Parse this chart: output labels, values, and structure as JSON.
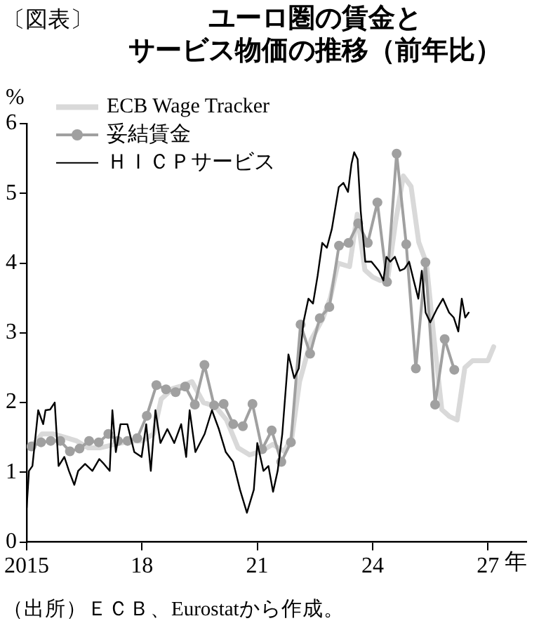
{
  "chart_data": {
    "type": "line",
    "title": "ユーロ圏の賃金とサービス物価の推移（前年比）",
    "ylabel": "%",
    "xlabel": "年",
    "annotations": [
      "〔図表〕",
      "（出所）ＥＣＢ、Eurostatから作成。"
    ],
    "xlim": [
      2015,
      2028
    ],
    "xticks": [
      2015,
      {
        "value": 2018,
        "label": "18"
      },
      {
        "value": 2021,
        "label": "21"
      },
      {
        "value": 2024,
        "label": "24"
      },
      {
        "value": 2027,
        "label": "27"
      }
    ],
    "ylim": [
      0,
      6
    ],
    "yticks": [
      0,
      1,
      2,
      3,
      4,
      5,
      6
    ],
    "grid": false,
    "legend": "top left",
    "series": [
      {
        "name": "ECB Wage Tracker",
        "color": "#d9d9d9",
        "marker": "none",
        "x": [
          2015.1,
          2015.4,
          2015.7,
          2016.0,
          2016.3,
          2016.6,
          2016.9,
          2017.3,
          2017.7,
          2018.0,
          2018.3,
          2018.5,
          2018.8,
          2019.1,
          2019.3,
          2019.6,
          2019.9,
          2020.2,
          2020.5,
          2020.8,
          2021.1,
          2021.4,
          2021.7,
          2021.9,
          2022.1,
          2022.4,
          2022.7,
          2022.9,
          2023.1,
          2023.4,
          2023.6,
          2023.8,
          2024.0,
          2024.2,
          2024.4,
          2024.6,
          2024.8,
          2025.0,
          2025.2,
          2025.4,
          2025.6,
          2025.8,
          2026.0,
          2026.2,
          2026.4,
          2026.6,
          2026.8,
          2027.0,
          2027.15
        ],
        "values": [
          1.35,
          1.55,
          1.55,
          1.5,
          1.45,
          1.35,
          1.35,
          1.4,
          1.45,
          1.45,
          1.55,
          2.05,
          2.2,
          2.25,
          2.3,
          2.0,
          1.95,
          1.75,
          1.35,
          1.25,
          1.3,
          1.4,
          1.3,
          1.5,
          2.3,
          2.9,
          3.2,
          3.5,
          4.0,
          3.95,
          4.7,
          3.9,
          3.8,
          3.75,
          3.8,
          4.6,
          5.25,
          5.1,
          4.3,
          4.0,
          2.9,
          1.9,
          1.8,
          1.75,
          2.5,
          2.6,
          2.6,
          2.6,
          2.8
        ]
      },
      {
        "name": "妥結賃金",
        "color": "#a0a0a0",
        "marker": "circle",
        "x": [
          2015.125,
          2015.375,
          2015.625,
          2015.875,
          2016.125,
          2016.375,
          2016.625,
          2016.875,
          2017.125,
          2017.375,
          2017.625,
          2017.875,
          2018.125,
          2018.375,
          2018.625,
          2018.875,
          2019.125,
          2019.375,
          2019.625,
          2019.875,
          2020.125,
          2020.375,
          2020.625,
          2020.875,
          2021.125,
          2021.375,
          2021.625,
          2021.875,
          2022.125,
          2022.375,
          2022.625,
          2022.875,
          2023.125,
          2023.375,
          2023.625,
          2023.875,
          2024.125,
          2024.375,
          2024.625,
          2024.875,
          2025.125,
          2025.375,
          2025.625,
          2025.875,
          2026.125
        ],
        "values": [
          1.37,
          1.43,
          1.45,
          1.45,
          1.3,
          1.34,
          1.45,
          1.43,
          1.55,
          1.45,
          1.45,
          1.49,
          1.81,
          2.25,
          2.19,
          2.15,
          2.23,
          1.97,
          2.54,
          1.96,
          1.98,
          1.69,
          1.66,
          1.98,
          1.33,
          1.6,
          1.15,
          1.43,
          3.12,
          2.7,
          3.21,
          3.37,
          4.25,
          4.29,
          4.57,
          4.29,
          4.87,
          3.73,
          5.57,
          4.27,
          2.49,
          4.01,
          1.97,
          2.91,
          2.47
        ]
      },
      {
        "name": "ＨＩＣＰサービス",
        "color": "#000000",
        "marker": "none",
        "x": [
          2015.0,
          2015.06,
          2015.15,
          2015.3,
          2015.43,
          2015.49,
          2015.61,
          2015.73,
          2015.83,
          2015.98,
          2016.1,
          2016.24,
          2016.34,
          2016.52,
          2016.71,
          2016.89,
          2017.01,
          2017.16,
          2017.23,
          2017.32,
          2017.44,
          2017.62,
          2017.8,
          2017.99,
          2018.11,
          2018.23,
          2018.35,
          2018.48,
          2018.66,
          2018.84,
          2019.02,
          2019.15,
          2019.24,
          2019.39,
          2019.63,
          2019.82,
          2020.0,
          2020.18,
          2020.37,
          2020.55,
          2020.73,
          2020.91,
          2021.0,
          2021.16,
          2021.29,
          2021.41,
          2021.53,
          2021.65,
          2021.81,
          2021.96,
          2022.08,
          2022.2,
          2022.33,
          2022.45,
          2022.57,
          2022.69,
          2022.81,
          2022.94,
          2023.12,
          2023.24,
          2023.36,
          2023.45,
          2023.52,
          2023.61,
          2023.69,
          2023.81,
          2023.97,
          2024.16,
          2024.28,
          2024.36,
          2024.46,
          2024.58,
          2024.71,
          2024.83,
          2024.95,
          2025.07,
          2025.19,
          2025.28,
          2025.38,
          2025.5,
          2025.68,
          2025.83,
          2025.99,
          2026.11,
          2026.23,
          2026.32,
          2026.41,
          2026.5
        ],
        "values": [
          0.49,
          1.02,
          1.09,
          1.89,
          1.69,
          1.89,
          1.9,
          2.0,
          1.09,
          1.22,
          1.02,
          0.82,
          1.02,
          1.12,
          1.02,
          1.19,
          1.12,
          1.02,
          1.89,
          1.29,
          1.69,
          1.69,
          1.29,
          1.22,
          1.69,
          1.02,
          1.89,
          1.42,
          1.62,
          1.42,
          1.69,
          1.22,
          1.89,
          1.29,
          1.55,
          1.89,
          1.62,
          1.29,
          1.15,
          0.75,
          0.42,
          0.75,
          1.42,
          1.02,
          1.09,
          0.72,
          1.02,
          1.55,
          2.69,
          2.35,
          2.49,
          3.15,
          3.49,
          3.42,
          3.82,
          4.29,
          4.22,
          4.49,
          5.09,
          5.15,
          5.02,
          5.42,
          5.59,
          5.49,
          4.75,
          4.02,
          4.02,
          3.89,
          3.75,
          4.09,
          4.02,
          4.09,
          3.89,
          3.92,
          4.02,
          3.75,
          3.49,
          3.89,
          3.29,
          3.15,
          3.35,
          3.49,
          3.29,
          3.22,
          3.02,
          3.49,
          3.22,
          3.29
        ]
      }
    ]
  }
}
